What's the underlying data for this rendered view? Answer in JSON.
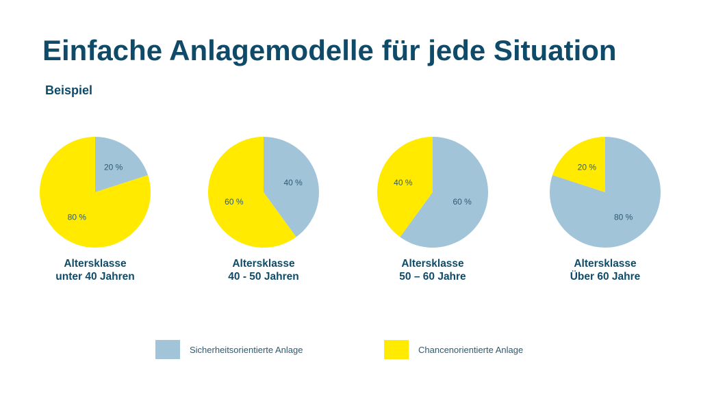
{
  "title": "Einfache Anlagemodelle für jede Situation",
  "subtitle": "Beispiel",
  "colors": {
    "sicherheit": "#a2c4d8",
    "chance": "#ffea00",
    "text": "#0f4b68"
  },
  "legend": {
    "sicherheit_label": "Sicherheitsorientierte Anlage",
    "chance_label": "Chancenorientierte Anlage"
  },
  "chart_data": [
    {
      "type": "pie",
      "label_line1": "Altersklasse",
      "label_line2": "unter 40 Jahren",
      "slices": [
        {
          "series": "Sicherheitsorientierte Anlage",
          "value": 20,
          "label": "20 %"
        },
        {
          "series": "Chancenorientierte Anlage",
          "value": 80,
          "label": "80 %"
        }
      ]
    },
    {
      "type": "pie",
      "label_line1": "Altersklasse",
      "label_line2": "40 - 50 Jahren",
      "slices": [
        {
          "series": "Sicherheitsorientierte Anlage",
          "value": 40,
          "label": "40 %"
        },
        {
          "series": "Chancenorientierte Anlage",
          "value": 60,
          "label": "60 %"
        }
      ]
    },
    {
      "type": "pie",
      "label_line1": "Altersklasse",
      "label_line2": "50 – 60 Jahre",
      "slices": [
        {
          "series": "Sicherheitsorientierte Anlage",
          "value": 60,
          "label": "60 %"
        },
        {
          "series": "Chancenorientierte Anlage",
          "value": 40,
          "label": "40 %"
        }
      ]
    },
    {
      "type": "pie",
      "label_line1": "Altersklasse",
      "label_line2": "Über 60 Jahre",
      "slices": [
        {
          "series": "Sicherheitsorientierte Anlage",
          "value": 80,
          "label": "80 %"
        },
        {
          "series": "Chancenorientierte Anlage",
          "value": 20,
          "label": "20 %"
        }
      ]
    }
  ]
}
